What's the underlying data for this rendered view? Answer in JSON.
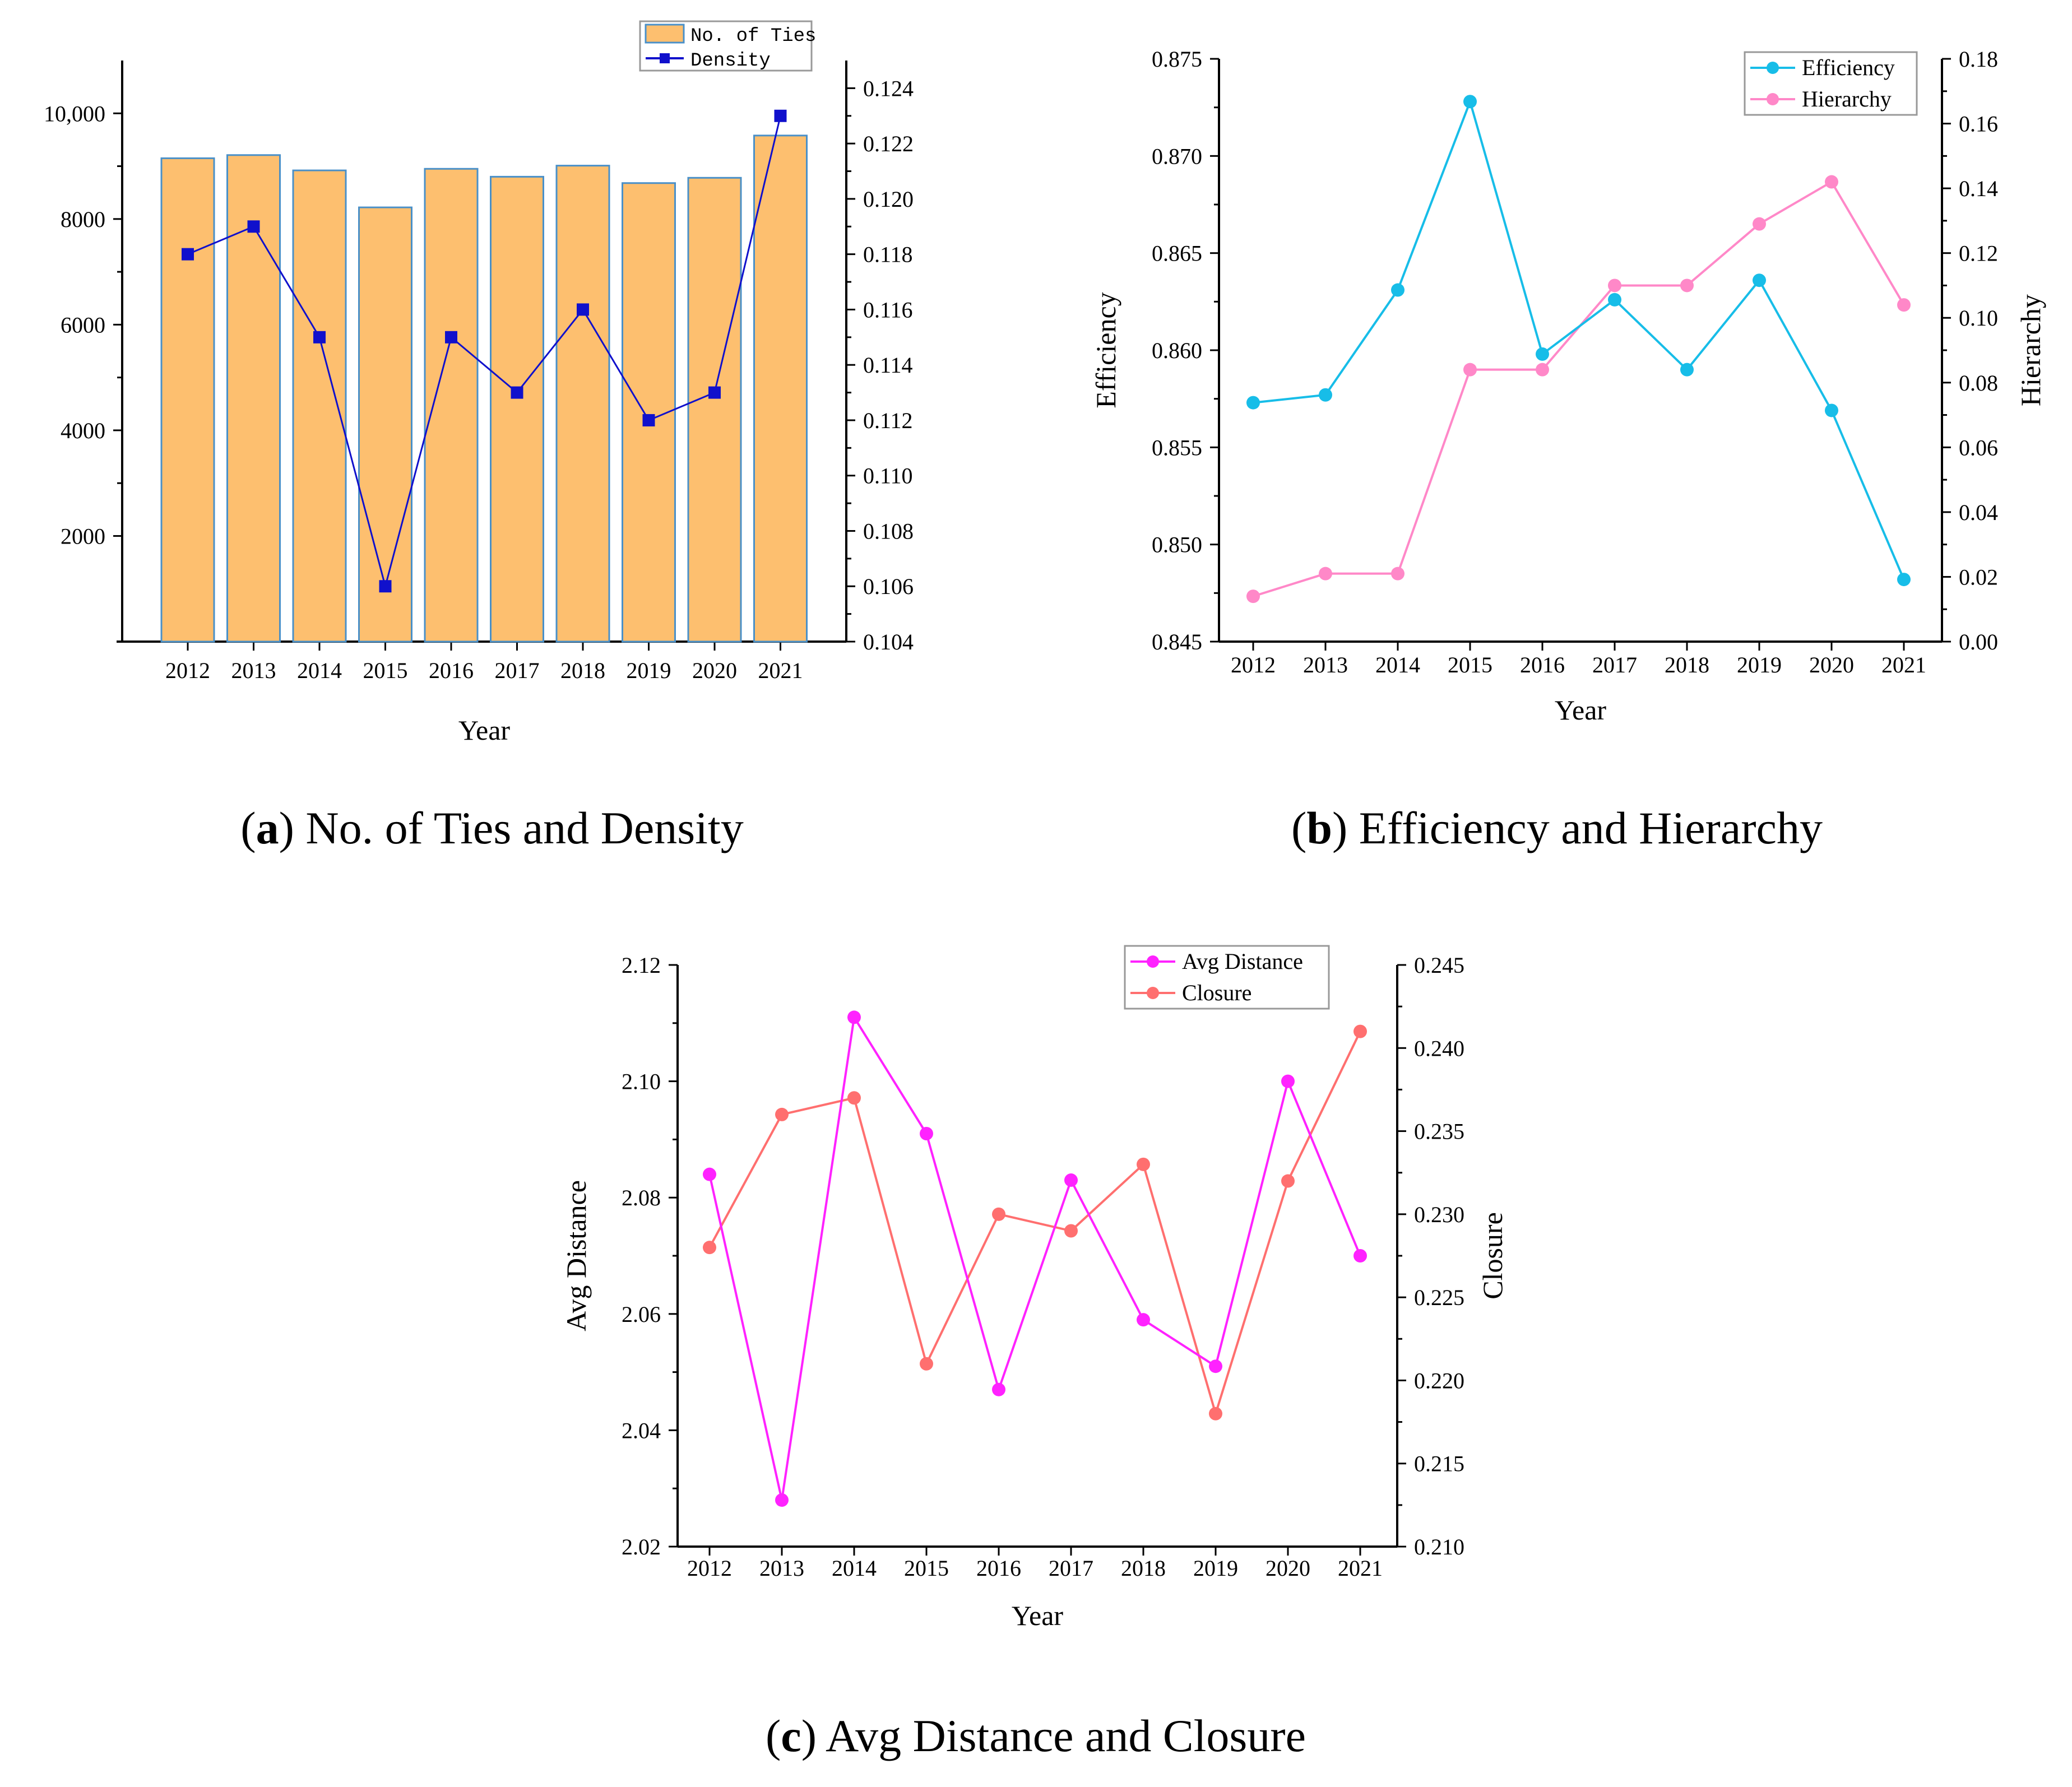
{
  "captions": {
    "a": {
      "letter": "a",
      "text": "No. of Ties and Density"
    },
    "b": {
      "letter": "b",
      "text": "Efficiency and Hierarchy"
    },
    "c": {
      "letter": "c",
      "text": "Avg Distance and Closure"
    }
  },
  "colors": {
    "bar_fill": "#fdbf6f",
    "bar_edge": "#4a90c8",
    "density": "#1010cc",
    "efficiency": "#17bde8",
    "hierarchy": "#ff88c8",
    "avg_distance": "#ff22ff",
    "closure": "#ff6f6f",
    "axis": "#000000"
  },
  "chart_data": [
    {
      "id": "a",
      "type": "bar+line",
      "title": "No. of Ties and Density",
      "xlabel": "Year",
      "ylabel_left": "",
      "ylabel_right": "",
      "categories": [
        "2012",
        "2013",
        "2014",
        "2015",
        "2016",
        "2017",
        "2018",
        "2019",
        "2020",
        "2021"
      ],
      "series": [
        {
          "name": "No. of Ties",
          "type": "bar",
          "axis": "left",
          "values": [
            9150,
            9210,
            8920,
            8220,
            8950,
            8800,
            9010,
            8680,
            8780,
            9580
          ]
        },
        {
          "name": "Density",
          "type": "line",
          "marker": "square",
          "axis": "right",
          "values": [
            0.118,
            0.119,
            0.115,
            0.106,
            0.115,
            0.113,
            0.116,
            0.112,
            0.113,
            0.123
          ]
        }
      ],
      "left_axis": {
        "min": 0,
        "max": 11000,
        "ticks": [
          2000,
          4000,
          6000,
          8000,
          10000
        ],
        "tick_labels": [
          "2000",
          "4000",
          "6000",
          "8000",
          "10,000"
        ]
      },
      "right_axis": {
        "min": 0.104,
        "max": 0.125,
        "ticks": [
          0.104,
          0.106,
          0.108,
          0.11,
          0.112,
          0.114,
          0.116,
          0.118,
          0.12,
          0.122,
          0.124
        ],
        "tick_labels": [
          "0.104",
          "0.106",
          "0.108",
          "0.110",
          "0.112",
          "0.114",
          "0.116",
          "0.118",
          "0.120",
          "0.122",
          "0.124"
        ]
      },
      "legend": {
        "position": "top-right",
        "entries": [
          "No. of Ties",
          "Density"
        ]
      }
    },
    {
      "id": "b",
      "type": "line",
      "title": "Efficiency and Hierarchy",
      "xlabel": "Year",
      "ylabel_left": "Efficiency",
      "ylabel_right": "Hierarchy",
      "categories": [
        "2012",
        "2013",
        "2014",
        "2015",
        "2016",
        "2017",
        "2018",
        "2019",
        "2020",
        "2021"
      ],
      "series": [
        {
          "name": "Efficiency",
          "axis": "left",
          "marker": "circle",
          "values": [
            0.8573,
            0.8577,
            0.8631,
            0.8728,
            0.8598,
            0.8626,
            0.859,
            0.8636,
            0.8569,
            0.8482
          ]
        },
        {
          "name": "Hierarchy",
          "axis": "right",
          "marker": "circle",
          "values": [
            0.014,
            0.021,
            0.021,
            0.084,
            0.084,
            0.11,
            0.11,
            0.129,
            0.142,
            0.104
          ]
        }
      ],
      "left_axis": {
        "min": 0.845,
        "max": 0.875,
        "ticks": [
          0.845,
          0.85,
          0.855,
          0.86,
          0.865,
          0.87,
          0.875
        ],
        "tick_labels": [
          "0.845",
          "0.850",
          "0.855",
          "0.860",
          "0.865",
          "0.870",
          "0.875"
        ]
      },
      "right_axis": {
        "min": 0.0,
        "max": 0.18,
        "ticks": [
          0.0,
          0.02,
          0.04,
          0.06,
          0.08,
          0.1,
          0.12,
          0.14,
          0.16,
          0.18
        ],
        "tick_labels": [
          "0.00",
          "0.02",
          "0.04",
          "0.06",
          "0.08",
          "0.10",
          "0.12",
          "0.14",
          "0.16",
          "0.18"
        ]
      },
      "legend": {
        "position": "top-right",
        "entries": [
          "Efficiency",
          "Hierarchy"
        ]
      }
    },
    {
      "id": "c",
      "type": "line",
      "title": "Avg Distance and Closure",
      "xlabel": "Year",
      "ylabel_left": "Avg Distance",
      "ylabel_right": "Closure",
      "categories": [
        "2012",
        "2013",
        "2014",
        "2015",
        "2016",
        "2017",
        "2018",
        "2019",
        "2020",
        "2021"
      ],
      "series": [
        {
          "name": "Avg Distance",
          "axis": "left",
          "marker": "circle",
          "values": [
            2.084,
            2.028,
            2.111,
            2.091,
            2.047,
            2.083,
            2.059,
            2.051,
            2.1,
            2.07
          ]
        },
        {
          "name": "Closure",
          "axis": "right",
          "marker": "circle",
          "values": [
            0.228,
            0.236,
            0.237,
            0.221,
            0.23,
            0.229,
            0.233,
            0.218,
            0.232,
            0.241
          ]
        }
      ],
      "left_axis": {
        "min": 2.02,
        "max": 2.12,
        "ticks": [
          2.02,
          2.04,
          2.06,
          2.08,
          2.1,
          2.12
        ],
        "tick_labels": [
          "2.02",
          "2.04",
          "2.06",
          "2.08",
          "2.10",
          "2.12"
        ]
      },
      "right_axis": {
        "min": 0.21,
        "max": 0.245,
        "ticks": [
          0.21,
          0.215,
          0.22,
          0.225,
          0.23,
          0.235,
          0.24,
          0.245
        ],
        "tick_labels": [
          "0.210",
          "0.215",
          "0.220",
          "0.225",
          "0.230",
          "0.235",
          "0.240",
          "0.245"
        ]
      },
      "legend": {
        "position": "top-right",
        "entries": [
          "Avg Distance",
          "Closure"
        ]
      }
    }
  ]
}
